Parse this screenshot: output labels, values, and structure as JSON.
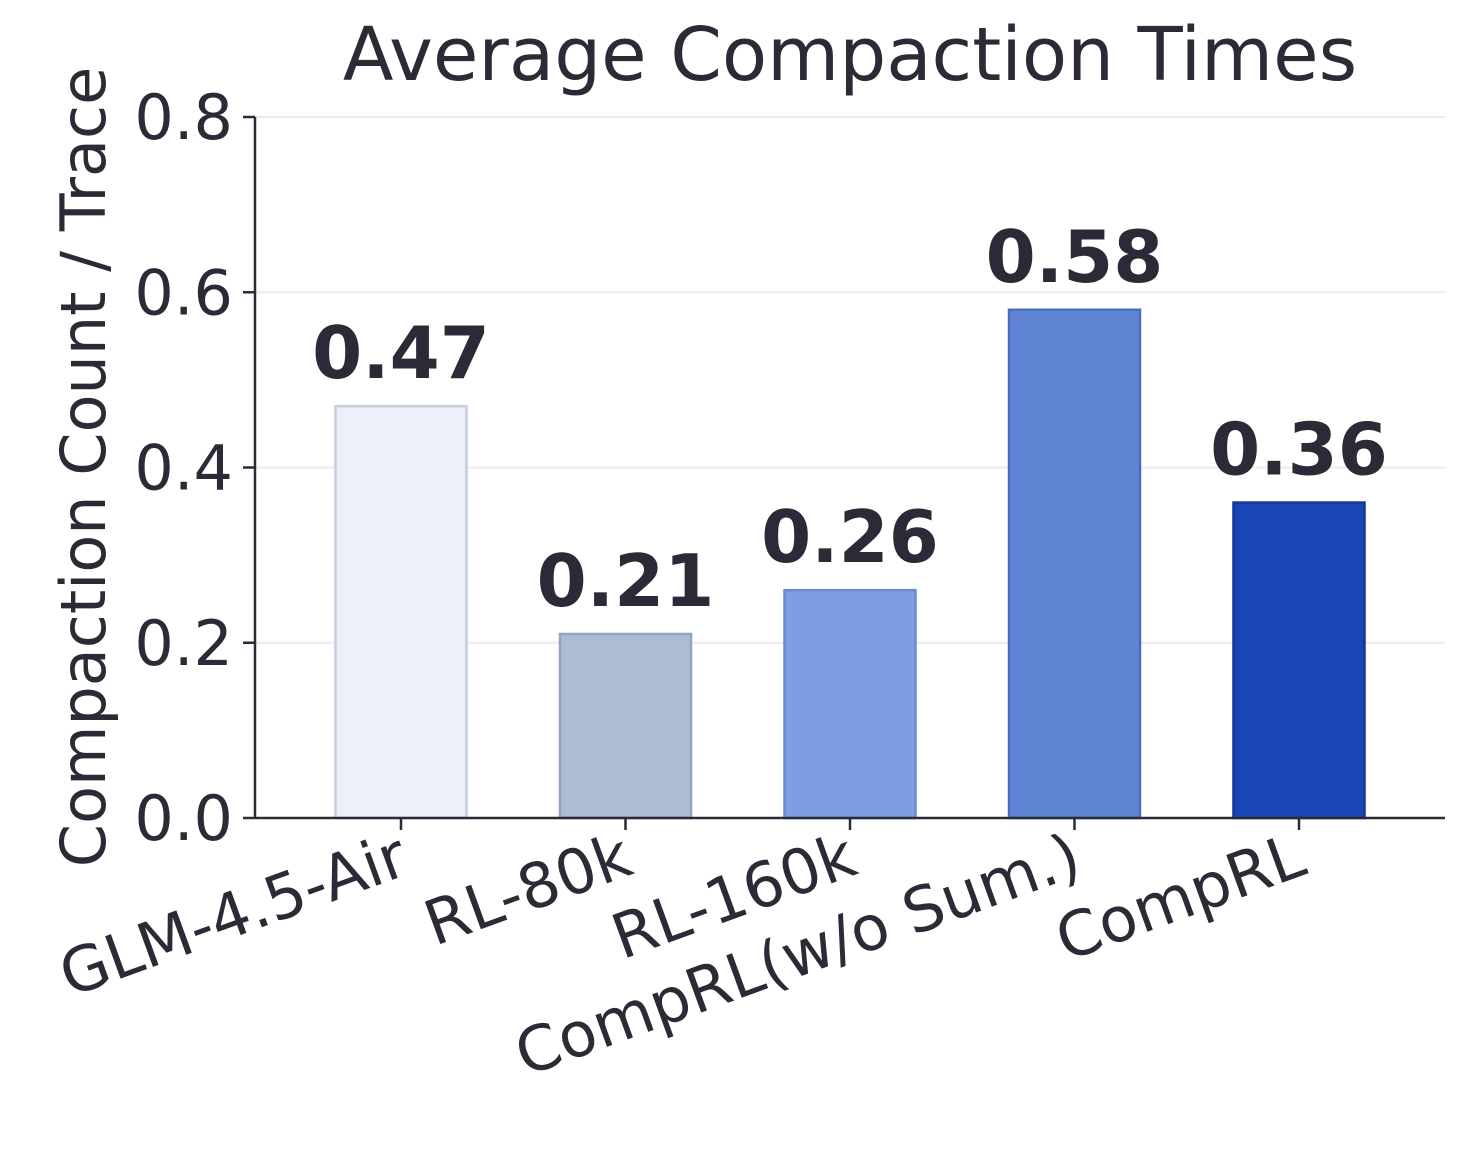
{
  "chart_data": {
    "type": "bar",
    "title": "Average Compaction Times",
    "ylabel": "Compaction Count / Trace",
    "xlabel": "",
    "categories": [
      "GLM-4.5-Air",
      "RL-80k",
      "RL-160k",
      "CompRL(w/o Sum.)",
      "CompRL"
    ],
    "values": [
      0.47,
      0.21,
      0.26,
      0.58,
      0.36
    ],
    "value_labels": [
      "0.47",
      "0.21",
      "0.26",
      "0.58",
      "0.36"
    ],
    "ylim": [
      0,
      0.8
    ],
    "yticks": [
      0.0,
      0.2,
      0.4,
      0.6,
      0.8
    ],
    "ytick_labels": [
      "0.0",
      "0.2",
      "0.4",
      "0.6",
      "0.8"
    ],
    "grid": true,
    "colors": [
      "#ecf0f8",
      "#adbbd3",
      "#7e9de2",
      "#6085d5",
      "#1a46b5"
    ],
    "edge_colors": [
      "#c5cedc",
      "#93a3bf",
      "#6a8ad2",
      "#4a6dc0",
      "#13379a"
    ]
  }
}
